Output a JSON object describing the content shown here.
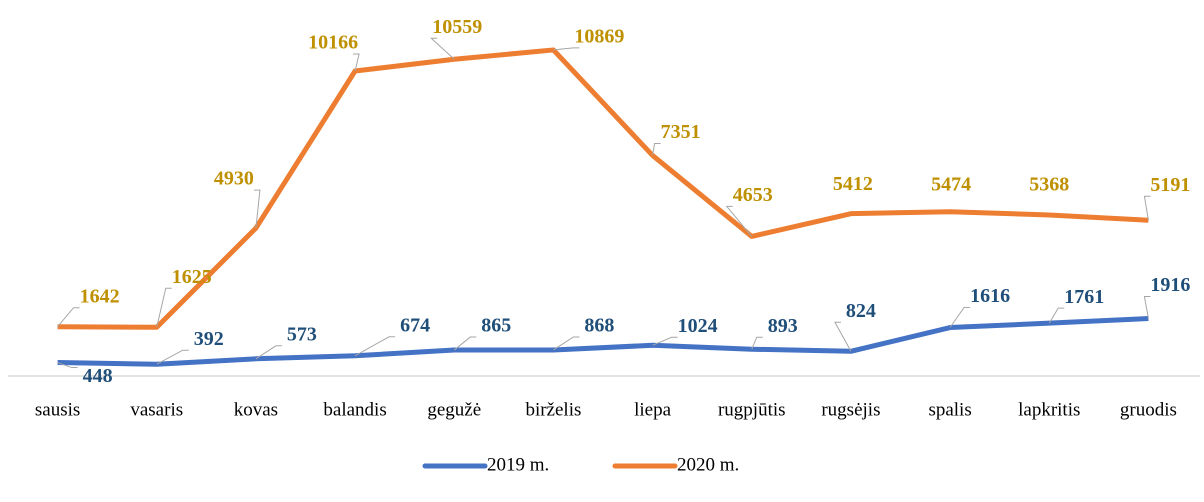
{
  "chart_data": {
    "type": "line",
    "categories": [
      "sausis",
      "vasaris",
      "kovas",
      "balandis",
      "gegužė",
      "birželis",
      "liepa",
      "rugpjūtis",
      "rugsėjis",
      "spalis",
      "lapkritis",
      "gruodis"
    ],
    "series": [
      {
        "name": "2019 m.",
        "color": "#4472c4",
        "label_color": "#1f4e79",
        "values": [
          448,
          392,
          573,
          674,
          865,
          868,
          1024,
          893,
          824,
          1616,
          1761,
          1916
        ]
      },
      {
        "name": "2020 m.",
        "color": "#ed7d31",
        "label_color": "#bf9000",
        "values": [
          1642,
          1625,
          4930,
          10166,
          10559,
          10869,
          7351,
          4653,
          5412,
          5474,
          5368,
          5191
        ]
      }
    ],
    "ylim": [
      0,
      12000
    ],
    "legend": "bottom"
  }
}
